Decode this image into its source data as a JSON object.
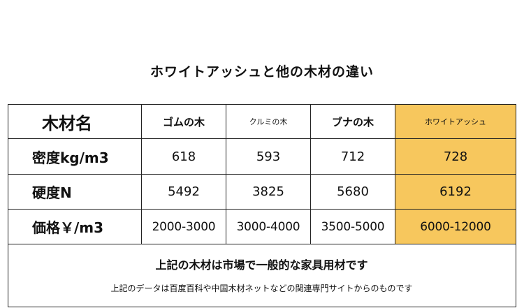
{
  "title": "ホワイトアッシュと他の木材の違い",
  "colors": {
    "highlight": "#f7c75d",
    "border": "#222222"
  },
  "table": {
    "header": [
      "木材名",
      "ゴムの木",
      "クルミの木",
      "ブナの木",
      "ホワイトアッシュ"
    ],
    "rows": [
      {
        "label": "密度kg/m3",
        "values": [
          "618",
          "593",
          "712",
          "728"
        ]
      },
      {
        "label": "硬度N",
        "values": [
          "5492",
          "3825",
          "5680",
          "6192"
        ]
      },
      {
        "label": "価格￥/m3",
        "values": [
          "2000-3000",
          "3000-4000",
          "3500-5000",
          "6000-12000"
        ]
      }
    ]
  },
  "footer": {
    "note1": "上記の木材は市場で一般的な家具用材です",
    "note2": "上記のデータは百度百科や中国木材ネットなどの関連専門サイトからのものです"
  }
}
